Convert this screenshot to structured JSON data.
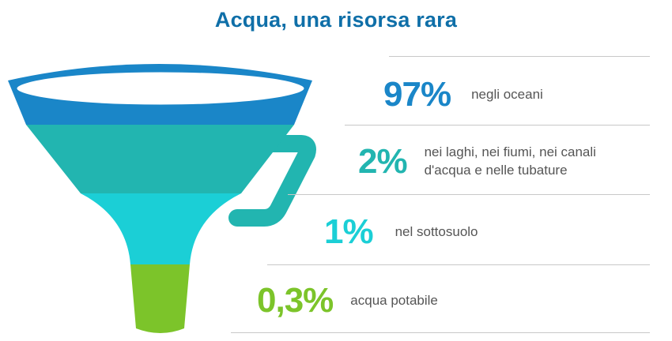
{
  "title": "Acqua, una risorsa rara",
  "colors": {
    "title": "#0f6fa8",
    "oceans": "#1a86c8",
    "lakes": "#22b5b0",
    "underground": "#1bcfd6",
    "drinking": "#7cc42a",
    "divider": "#c8c8c8"
  },
  "stats": [
    {
      "percent": "97%",
      "label": "negli oceani",
      "color": "#1a86c8"
    },
    {
      "percent": "2%",
      "label": "nei laghi, nei fiumi, nei canali d'acqua e nelle tubature",
      "color": "#22b5b0"
    },
    {
      "percent": "1%",
      "label": "nel sottosuolo",
      "color": "#1bcfd6"
    },
    {
      "percent": "0,3%",
      "label": "acqua potabile",
      "color": "#7cc42a"
    }
  ]
}
